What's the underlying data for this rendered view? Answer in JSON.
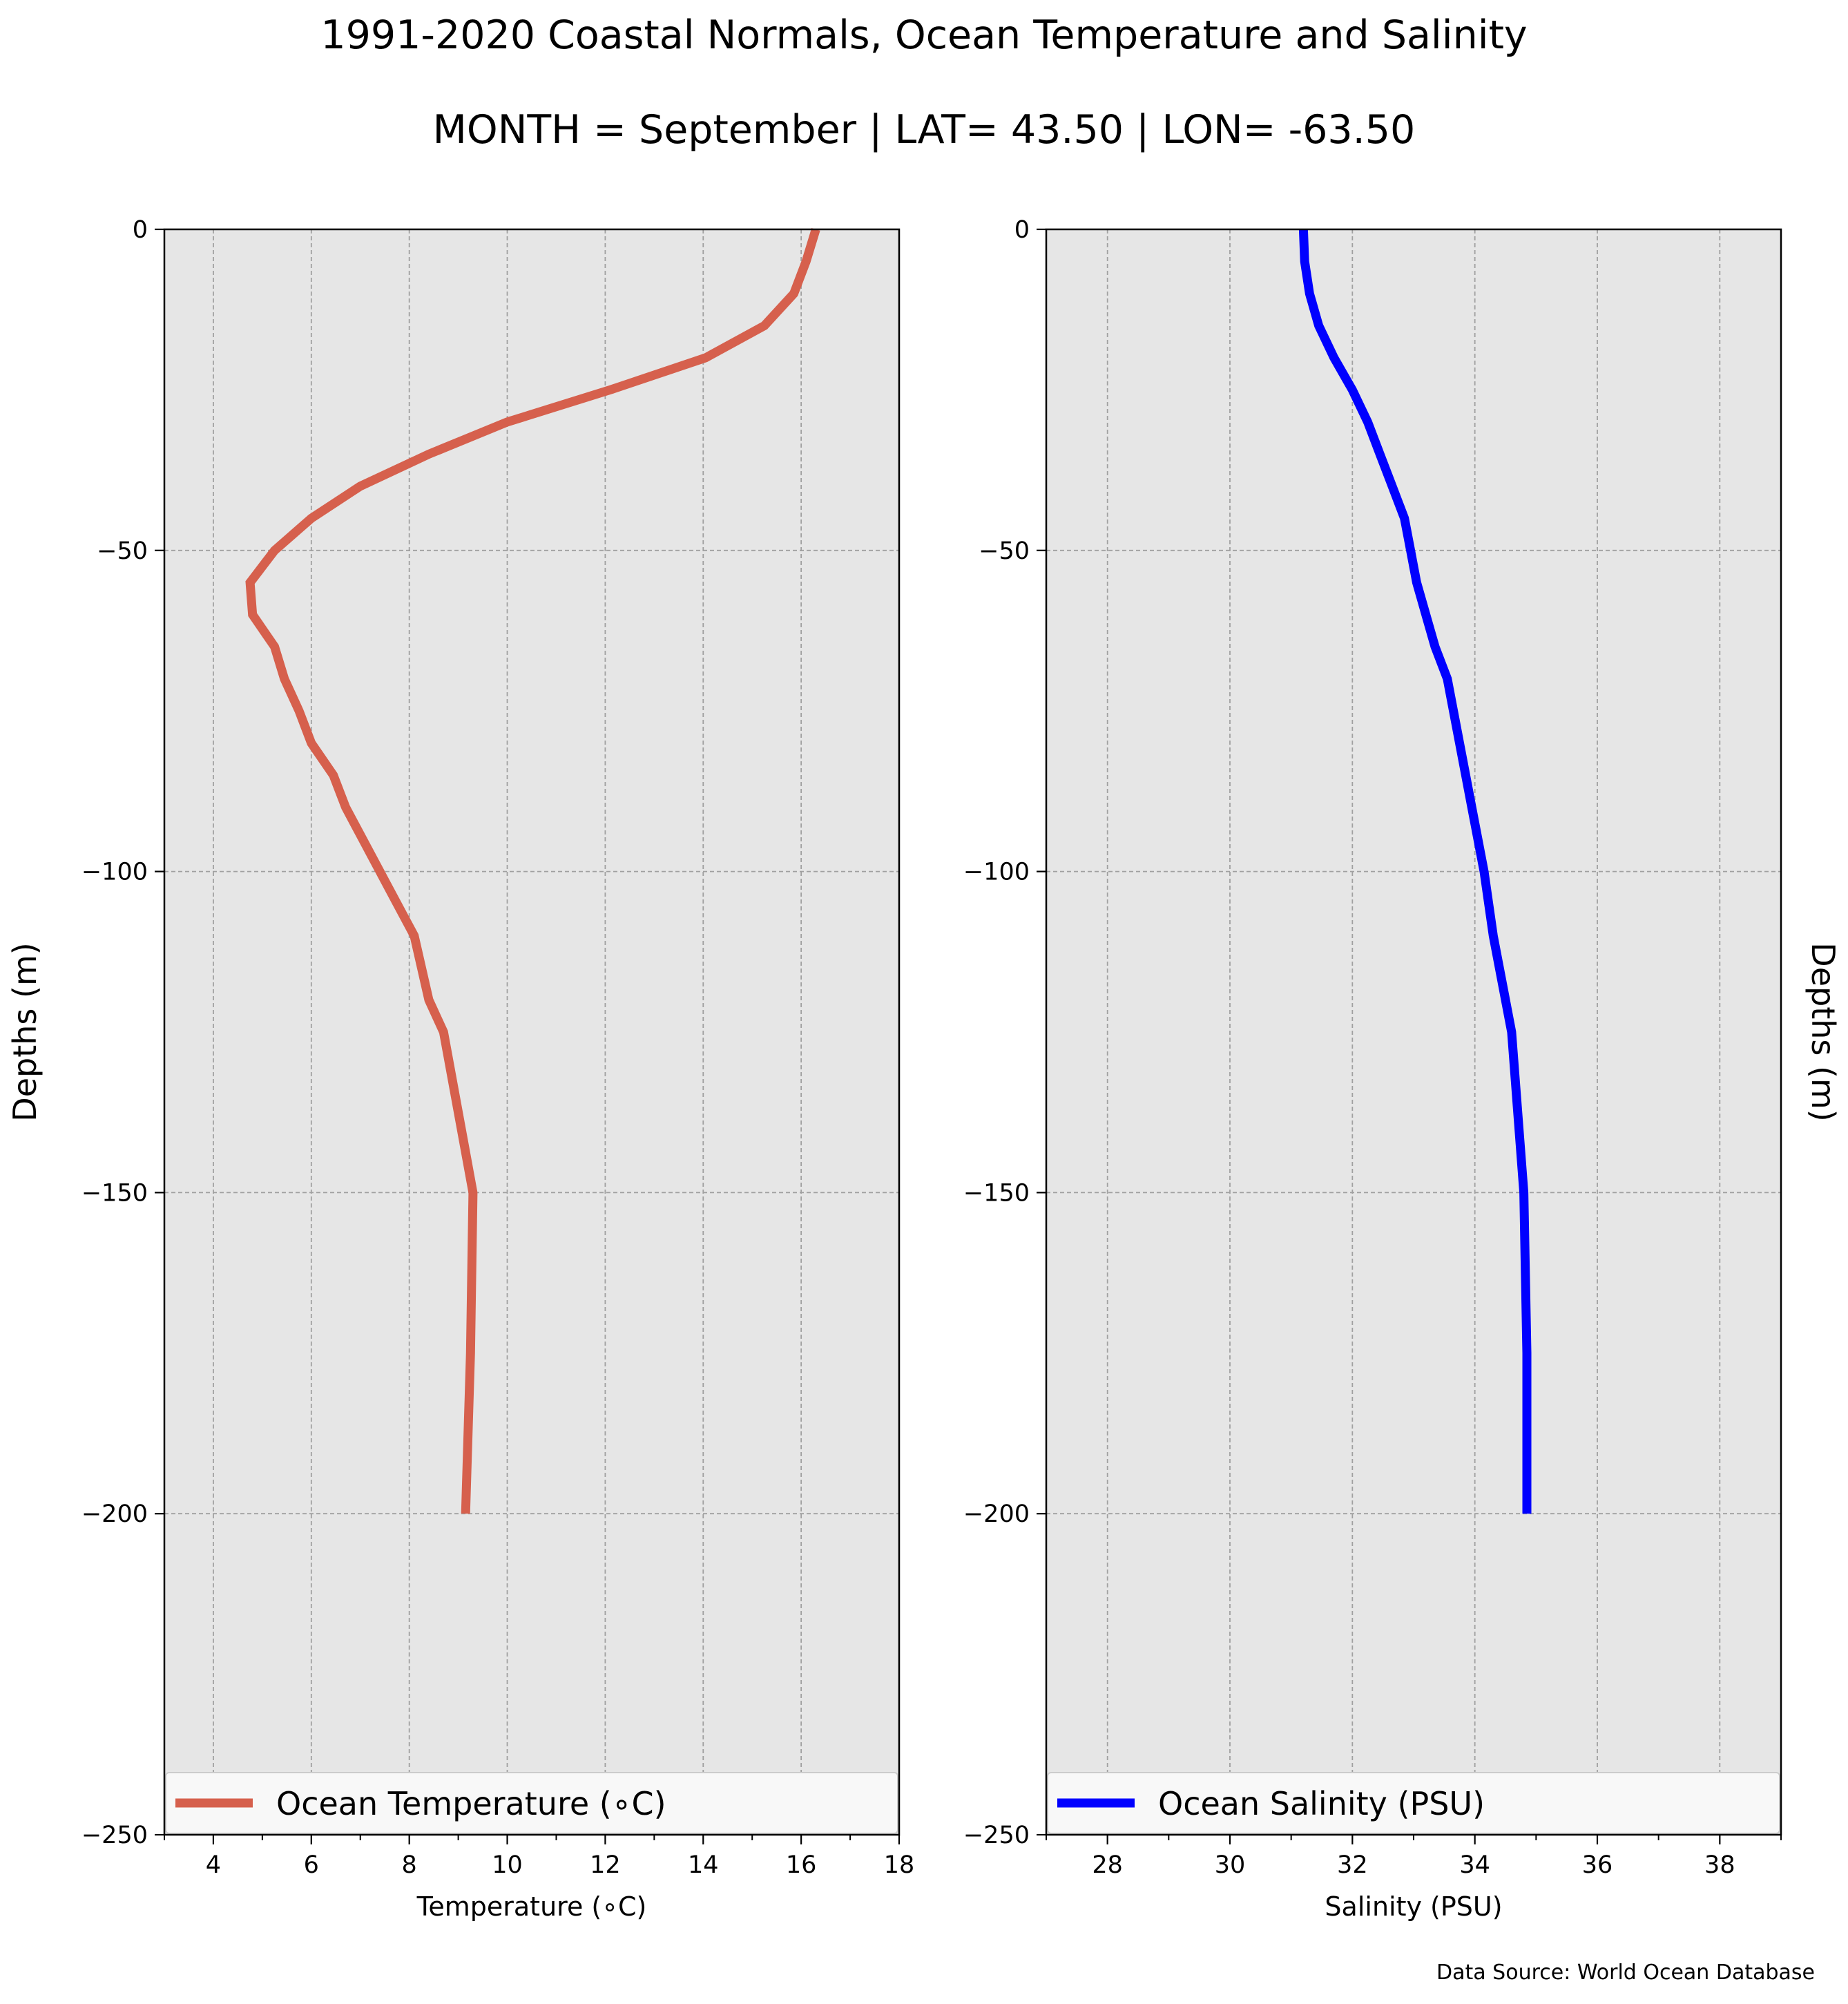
{
  "title": "1991-2020 Coastal Normals, Ocean Temperature and Salinity",
  "subtitle": "MONTH = September | LAT= 43.50 | LON= -63.50",
  "source": "Data Source: World Ocean Database",
  "chart_data": [
    {
      "type": "line",
      "xlabel": "Temperature (∘C)",
      "ylabel": "Depths (m)",
      "xlim": [
        3,
        18
      ],
      "ylim": [
        -250,
        0
      ],
      "xticks": [
        4,
        6,
        8,
        10,
        12,
        14,
        16,
        18
      ],
      "yticks": [
        0,
        -50,
        -100,
        -150,
        -200,
        -250
      ],
      "grid": true,
      "background": "#e6e6e6",
      "legend_position": "lower",
      "series": [
        {
          "name": "Ocean Temperature (∘C)",
          "color": "#d6604d",
          "x": [
            16.3,
            16.1,
            15.85,
            15.25,
            14.05,
            12.1,
            10.0,
            8.4,
            7.0,
            6.0,
            5.25,
            4.75,
            4.8,
            5.25,
            5.45,
            5.75,
            6.0,
            6.45,
            6.7,
            7.05,
            7.4,
            7.75,
            8.1,
            8.4,
            8.7,
            9.3,
            9.25,
            9.15
          ],
          "y": [
            0,
            -5,
            -10,
            -15,
            -20,
            -25,
            -30,
            -35,
            -40,
            -45,
            -50,
            -55,
            -60,
            -65,
            -70,
            -75,
            -80,
            -85,
            -90,
            -95,
            -100,
            -105,
            -110,
            -120,
            -125,
            -150,
            -175,
            -200
          ]
        }
      ]
    },
    {
      "type": "line",
      "xlabel": "Salinity (PSU)",
      "ylabel": "Depths (m)",
      "xlim": [
        27,
        39
      ],
      "ylim": [
        -250,
        0
      ],
      "xticks": [
        28,
        30,
        32,
        34,
        36,
        38
      ],
      "yticks": [
        0,
        -50,
        -100,
        -150,
        -200,
        -250
      ],
      "grid": true,
      "background": "#e6e6e6",
      "legend_position": "lower",
      "series": [
        {
          "name": "Ocean Salinity (PSU)",
          "color": "#0000ff",
          "x": [
            31.2,
            31.22,
            31.3,
            31.45,
            31.7,
            32.0,
            32.25,
            32.45,
            32.65,
            32.85,
            32.95,
            33.05,
            33.2,
            33.35,
            33.55,
            33.75,
            33.95,
            34.15,
            34.3,
            34.6,
            34.8,
            34.85,
            34.85
          ],
          "y": [
            0,
            -5,
            -10,
            -15,
            -20,
            -25,
            -30,
            -35,
            -40,
            -45,
            -50,
            -55,
            -60,
            -65,
            -70,
            -80,
            -90,
            -100,
            -110,
            -125,
            -150,
            -175,
            -200
          ]
        }
      ]
    }
  ]
}
